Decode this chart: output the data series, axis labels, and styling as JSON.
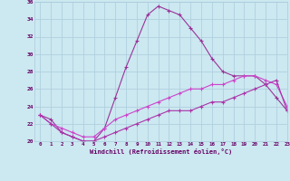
{
  "xlabel": "Windchill (Refroidissement éolien,°C)",
  "hours": [
    0,
    1,
    2,
    3,
    4,
    5,
    6,
    7,
    8,
    9,
    10,
    11,
    12,
    13,
    14,
    15,
    16,
    17,
    18,
    19,
    20,
    21,
    22,
    23
  ],
  "line1": [
    23.0,
    22.5,
    21.0,
    20.5,
    20.0,
    20.0,
    21.5,
    25.0,
    28.5,
    31.5,
    34.5,
    35.5,
    35.0,
    34.5,
    33.0,
    31.5,
    29.5,
    28.0,
    27.5,
    27.5,
    27.5,
    26.5,
    25.0,
    23.5
  ],
  "line2": [
    23.0,
    22.0,
    21.5,
    21.0,
    20.5,
    20.5,
    21.5,
    22.5,
    23.0,
    23.5,
    24.0,
    24.5,
    25.0,
    25.5,
    26.0,
    26.0,
    26.5,
    26.5,
    27.0,
    27.5,
    27.5,
    27.0,
    26.5,
    24.0
  ],
  "line3": [
    23.0,
    22.0,
    21.0,
    20.5,
    20.0,
    20.0,
    20.5,
    21.0,
    21.5,
    22.0,
    22.5,
    23.0,
    23.5,
    23.5,
    23.5,
    24.0,
    24.5,
    24.5,
    25.0,
    25.5,
    26.0,
    26.5,
    27.0,
    23.5
  ],
  "line_color1": "#993399",
  "line_color2": "#cc44cc",
  "line_color3": "#aa33aa",
  "bg_color": "#cce8f0",
  "grid_color": "#aaccdd",
  "text_color": "#660066",
  "ylim": [
    20,
    36
  ],
  "yticks": [
    20,
    22,
    24,
    26,
    28,
    30,
    32,
    34,
    36
  ],
  "xlim": [
    -0.5,
    23
  ],
  "fig_width": 3.2,
  "fig_height": 2.0,
  "dpi": 100
}
